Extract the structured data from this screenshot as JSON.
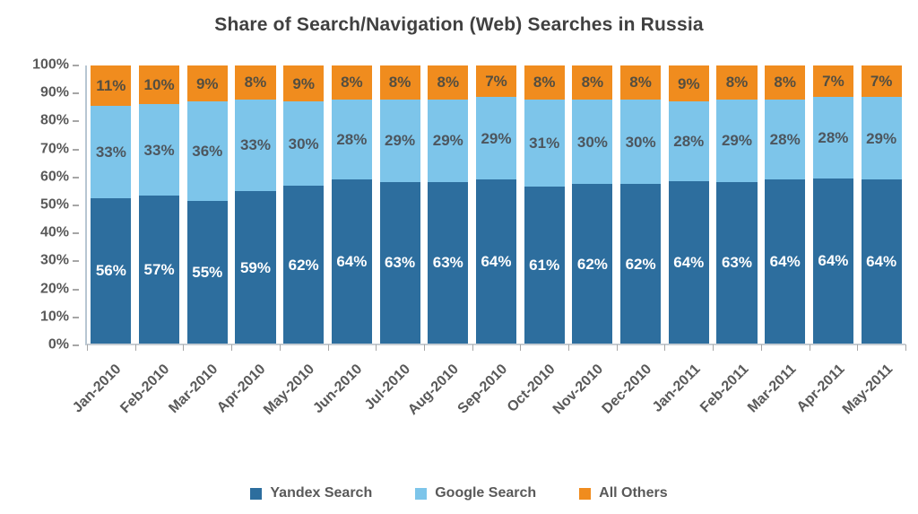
{
  "chart_data": {
    "type": "bar",
    "stacked": true,
    "percent_stacked": true,
    "title": "Share of Search/Navigation (Web) Searches in Russia",
    "categories": [
      "Jan-2010",
      "Feb-2010",
      "Mar-2010",
      "Apr-2010",
      "May-2010",
      "Jun-2010",
      "Jul-2010",
      "Aug-2010",
      "Sep-2010",
      "Oct-2010",
      "Nov-2010",
      "Dec-2010",
      "Jan-2011",
      "Feb-2011",
      "Mar-2011",
      "Apr-2011",
      "May-2011"
    ],
    "series": [
      {
        "name": "Yandex Search",
        "color": "#2D6E9E",
        "label_color": "#FFFFFF",
        "values": [
          56,
          57,
          55,
          59,
          62,
          64,
          63,
          63,
          64,
          61,
          62,
          62,
          64,
          63,
          64,
          64,
          64
        ]
      },
      {
        "name": "Google Search",
        "color": "#7DC5EA",
        "label_color": "#4D565E",
        "values": [
          33,
          33,
          36,
          33,
          30,
          28,
          29,
          29,
          29,
          31,
          30,
          30,
          28,
          29,
          28,
          28,
          29
        ]
      },
      {
        "name": "All Others",
        "color": "#F08C1E",
        "label_color": "#544E40",
        "values": [
          11,
          10,
          9,
          8,
          9,
          8,
          8,
          8,
          7,
          8,
          8,
          8,
          9,
          8,
          8,
          7,
          7
        ]
      }
    ],
    "value_suffix": "%",
    "y_axis": {
      "min": 0,
      "max": 100,
      "tick_step": 10,
      "tick_labels": [
        "0%",
        "10%",
        "20%",
        "30%",
        "40%",
        "50%",
        "60%",
        "70%",
        "80%",
        "90%",
        "100%"
      ]
    },
    "grid": false,
    "legend_position": "bottom"
  },
  "colors": {
    "title_text": "#404040",
    "axis_text": "#595959",
    "axis_line": "#BFBFBF",
    "background": "#FFFFFF"
  }
}
